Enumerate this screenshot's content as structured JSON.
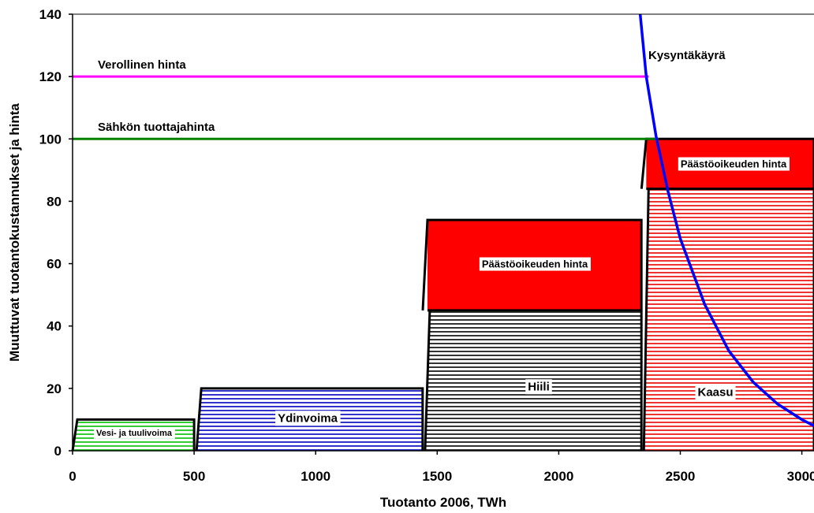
{
  "chart_data": {
    "type": "area",
    "xlabel": "Tuotanto 2006, TWh",
    "ylabel": "Muuttuvat tuotantokustannukset ja hinta",
    "xlim": [
      0,
      3050
    ],
    "ylim": [
      0,
      140
    ],
    "x_ticks": [
      0,
      500,
      1000,
      1500,
      2000,
      2500,
      3000
    ],
    "y_ticks": [
      0,
      20,
      40,
      60,
      80,
      100,
      120,
      140
    ],
    "grid": false,
    "segments": [
      {
        "name": "Vesi- ja tuulivoima",
        "x_start": 0,
        "x_end": 500,
        "cost": 10,
        "color": "#33cc33"
      },
      {
        "name": "Ydinvoima",
        "x_start": 510,
        "x_end": 1440,
        "cost": 20,
        "color": "#3333cc"
      },
      {
        "name": "Hiili",
        "x_start": 1450,
        "x_end": 2340,
        "cost": 45,
        "color": "#333333"
      },
      {
        "name": "Kaasu",
        "x_start": 2350,
        "x_end": 3050,
        "cost": 84,
        "color": "#ee3333"
      }
    ],
    "emission_blocks": [
      {
        "label": "Päästöoikeuden hinta",
        "x_start": 1460,
        "x_end": 2340,
        "y_bottom": 45,
        "y_top": 74,
        "color": "#ff0000"
      },
      {
        "label": "Päästöoikeuden hinta",
        "x_start": 2360,
        "x_end": 3050,
        "y_bottom": 84,
        "y_top": 100,
        "color": "#ff0000"
      }
    ],
    "price_lines": [
      {
        "label": "Verollinen hinta",
        "value": 120,
        "x_start": 0,
        "x_end": 2370,
        "color": "#ff00ff"
      },
      {
        "label": "Sähkön tuottajahinta",
        "value": 100,
        "x_start": 0,
        "x_end": 2410,
        "color": "#008000"
      }
    ],
    "demand_curve": {
      "label": "Kysyntäkäyrä",
      "color": "#0000ff",
      "x": [
        2335,
        2360,
        2400,
        2450,
        2500,
        2600,
        2700,
        2800,
        2900,
        3000,
        3050
      ],
      "y": [
        140,
        120,
        101,
        83,
        68,
        47,
        32,
        22,
        15,
        10,
        8
      ]
    }
  }
}
